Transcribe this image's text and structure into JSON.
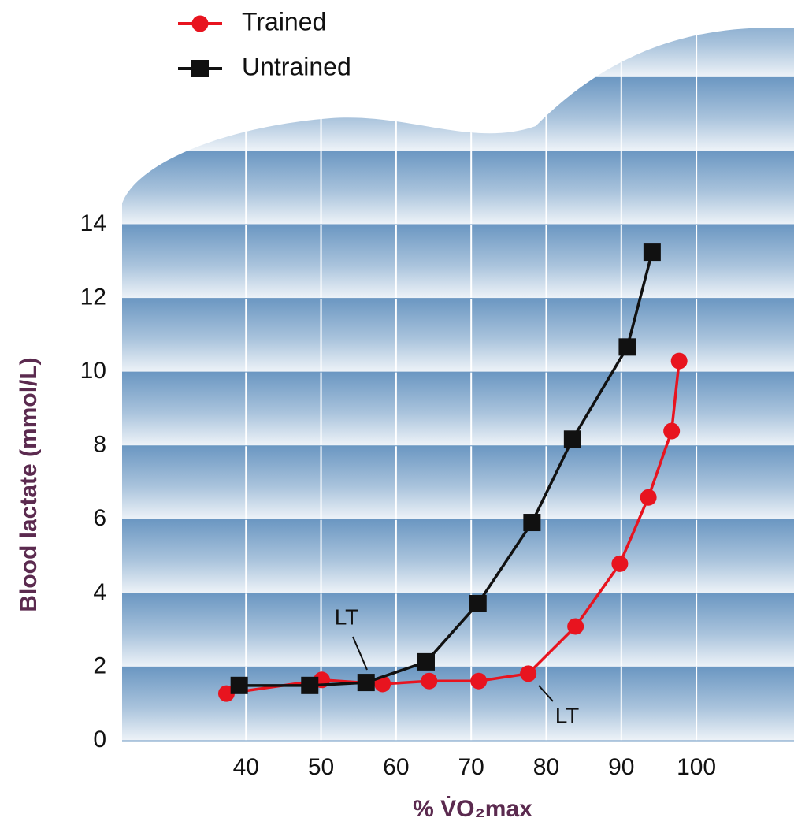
{
  "chart_data": {
    "type": "line",
    "x_label": "% V̇O₂max",
    "y_label": "Blood lactate (mmol/L)",
    "xlim": [
      23.5,
      113
    ],
    "ylim": [
      0,
      14
    ],
    "xticks": [
      40,
      50,
      60,
      70,
      80,
      90,
      100
    ],
    "yticks": [
      0,
      2,
      4,
      6,
      8,
      10,
      12,
      14
    ],
    "grid": true,
    "legend": "top-left",
    "annotations": [
      "LT",
      "LT"
    ],
    "series": [
      {
        "name": "Trained",
        "color": "#e8141f",
        "marker": "circle",
        "x": [
          37.4,
          50.1,
          58.2,
          64.4,
          71.0,
          77.6,
          83.9,
          89.8,
          93.6,
          96.7,
          97.7
        ],
        "values": [
          1.28,
          1.65,
          1.54,
          1.62,
          1.62,
          1.82,
          3.1,
          4.8,
          6.6,
          8.4,
          10.3
        ]
      },
      {
        "name": "Untrained",
        "color": "#111111",
        "marker": "square",
        "x": [
          39.1,
          48.5,
          56.0,
          64.0,
          70.9,
          78.1,
          83.5,
          90.8,
          94.1
        ],
        "values": [
          1.5,
          1.5,
          1.58,
          2.14,
          3.72,
          5.92,
          8.18,
          10.68,
          13.25
        ]
      }
    ]
  }
}
